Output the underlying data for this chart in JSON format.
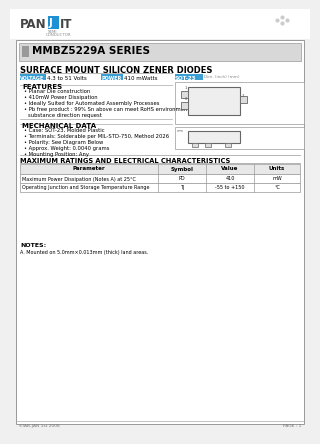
{
  "bg_color": "#f0f0f0",
  "page_bg": "#ffffff",
  "title": "MMBZ5229A SERIES",
  "subtitle": "SURFACE MOUNT SILICON ZENER DIODES",
  "voltage_label": "VOLTAGE",
  "voltage_value": "4.3 to 51 Volts",
  "power_label": "POWER",
  "power_value": "410 mWatts",
  "package_label": "SOT-23",
  "package_dim": "Dim. (inch) (mm)",
  "features_title": "FEATURES",
  "features": [
    "Planar Die construction",
    "410mW Power Dissipation",
    "Ideally Suited for Automated Assembly Processes",
    "Pb free product : 99% Sn above can meet RoHS environment",
    "    substance direction request"
  ],
  "mech_title": "MECHANICAL DATA",
  "mech_data": [
    "Case: SOT-23, Molded Plastic",
    "Terminals: Solderable per MIL-STD-750, Method 2026",
    "Polarity: See Diagram Below",
    "Approx. Weight: 0.0040 grams",
    "Mounting Position: Any"
  ],
  "table_title": "MAXIMUM RATINGS AND ELECTRICAL CHARACTERISTICS",
  "table_headers": [
    "Parameter",
    "Symbol",
    "Value",
    "Units"
  ],
  "table_rows": [
    [
      "Maximum Power Dissipation (Notes A) at 25°C",
      "PD",
      "410",
      "mW"
    ],
    [
      "Operating Junction and Storage Temperature Range",
      "TJ",
      "-55 to +150",
      "°C"
    ]
  ],
  "notes_title": "NOTES:",
  "notes": [
    "A. Mounted on 5.0mm×0.013mm (thick) land areas."
  ],
  "footer_left": "STAB-JAN 1st 2008",
  "footer_right": "PAGE : 1",
  "voltage_bg": "#3b9fd4",
  "power_bg": "#3b9fd4",
  "package_bg": "#3b9fd4",
  "title_box_bg": "#d8d8d8",
  "title_square_bg": "#999999",
  "table_header_bg": "#e8e8e8",
  "line_color": "#aaaaaa",
  "border_color": "#999999"
}
